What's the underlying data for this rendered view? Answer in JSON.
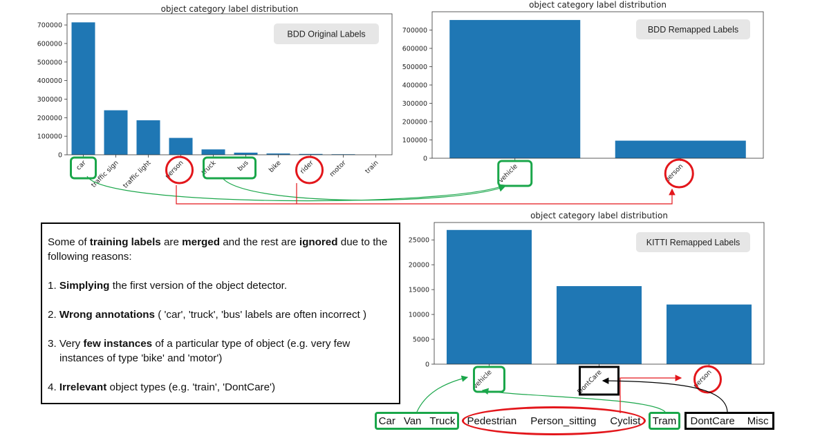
{
  "chart_data": [
    {
      "type": "bar",
      "title": "object category label distribution",
      "badge": "BDD Original Labels",
      "categories": [
        "car",
        "traffic sign",
        "traffic light",
        "person",
        "truck",
        "bus",
        "bike",
        "rider",
        "motor",
        "train"
      ],
      "values": [
        714000,
        240000,
        186000,
        91000,
        29000,
        11500,
        7000,
        4500,
        3000,
        136
      ],
      "yticks": [
        0,
        100000,
        200000,
        300000,
        400000,
        500000,
        600000,
        700000
      ],
      "ylim": [
        0,
        760000
      ],
      "color": "#1f77b4"
    },
    {
      "type": "bar",
      "title": "object category label distribution",
      "badge": "BDD Remapped Labels",
      "categories": [
        "vehicle",
        "person"
      ],
      "values": [
        755000,
        96000
      ],
      "yticks": [
        0,
        100000,
        200000,
        300000,
        400000,
        500000,
        600000,
        700000
      ],
      "ylim": [
        0,
        800000
      ],
      "color": "#1f77b4"
    },
    {
      "type": "bar",
      "title": "object category label distribution",
      "badge": "KITTI Remapped Labels",
      "categories": [
        "vehicle",
        "DontCare",
        "person"
      ],
      "values": [
        27000,
        15700,
        12000
      ],
      "yticks": [
        0,
        5000,
        10000,
        15000,
        20000,
        25000
      ],
      "ylim": [
        0,
        28500
      ],
      "color": "#1f77b4"
    }
  ],
  "note": {
    "line1": [
      "Some of ",
      "training labels",
      " are ",
      "merged",
      " and the rest are ",
      "ignored",
      " due to the following reasons:"
    ],
    "item1": [
      "1. ",
      "Simplying",
      " the first version of the object detector."
    ],
    "item2": [
      "2. ",
      "Wrong annotations",
      " ( 'car', 'truck', 'bus' labels are often incorrect )"
    ],
    "item3": [
      "3. Very ",
      "few instances",
      " of a particular type of object (e.g. very few instances of type 'bike' and 'motor')"
    ],
    "item4": [
      "4. ",
      "Irrelevant",
      " object types (e.g. 'train', 'DontCare')"
    ]
  },
  "kitti_labels": {
    "vehicle_group": [
      "Car",
      "Van",
      "Truck"
    ],
    "person_group": [
      "Pedestrian",
      "Person_sitting",
      "Cyclist"
    ],
    "tram": "Tram",
    "dontcare_group": [
      "DontCare",
      "Misc"
    ]
  },
  "colors": {
    "bar": "#1f77b4",
    "green": "#1aa64a",
    "red": "#e3161b",
    "black": "#000000",
    "badge_bg": "#e6e6e6"
  }
}
